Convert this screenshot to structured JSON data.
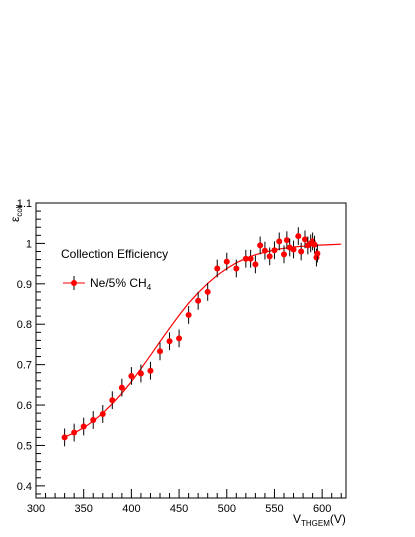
{
  "chart_data": {
    "type": "scatter",
    "title": "",
    "xlabel": {
      "main": "V",
      "sub": "THGEM",
      "unit": "(V)"
    },
    "ylabel": {
      "main": "ε",
      "sub": "coll"
    },
    "xlim": [
      300,
      625
    ],
    "ylim": [
      0.37,
      1.1
    ],
    "x_ticks": [
      300,
      350,
      400,
      450,
      500,
      550,
      600
    ],
    "y_ticks": [
      0.4,
      0.5,
      0.6,
      0.7,
      0.8,
      0.9,
      1,
      1.1
    ],
    "y_tick_labels": [
      "0.4",
      "0.5",
      "0.6",
      "0.7",
      "0.8",
      "0.9",
      "1",
      "1.1"
    ],
    "grid": false,
    "legend": {
      "header": "Collection Efficiency",
      "entries": [
        {
          "main": "Ne/5% CH",
          "sub": "4"
        }
      ],
      "placement": "top-left"
    },
    "colors": {
      "points": "#ff0000",
      "fit": "#ff0000",
      "errorbars": "#000000",
      "axes": "#000000"
    },
    "series": [
      {
        "type": "scatter-errorbar",
        "x": [
          330,
          340,
          350,
          360,
          370,
          380,
          390,
          400,
          410,
          420,
          430,
          440,
          450,
          460,
          470,
          480,
          490,
          500,
          510,
          520,
          525,
          530,
          535,
          540,
          545,
          550,
          555,
          560,
          563,
          566,
          570,
          575,
          578,
          582,
          585,
          588,
          590,
          592,
          594,
          595
        ],
        "y": [
          0.52,
          0.532,
          0.547,
          0.563,
          0.578,
          0.612,
          0.643,
          0.672,
          0.678,
          0.685,
          0.733,
          0.758,
          0.765,
          0.823,
          0.858,
          0.88,
          0.938,
          0.955,
          0.938,
          0.962,
          0.962,
          0.948,
          0.995,
          0.982,
          0.968,
          0.983,
          1.005,
          0.973,
          1.008,
          0.99,
          0.985,
          1.018,
          0.98,
          1.01,
          0.995,
          1.0,
          1.005,
          0.997,
          0.965,
          0.975
        ],
        "err": [
          0.022,
          0.022,
          0.022,
          0.022,
          0.022,
          0.022,
          0.022,
          0.022,
          0.022,
          0.022,
          0.022,
          0.022,
          0.022,
          0.022,
          0.022,
          0.022,
          0.022,
          0.022,
          0.022,
          0.022,
          0.022,
          0.022,
          0.022,
          0.022,
          0.022,
          0.022,
          0.022,
          0.022,
          0.022,
          0.022,
          0.022,
          0.022,
          0.022,
          0.022,
          0.022,
          0.022,
          0.022,
          0.022,
          0.022,
          0.022
        ]
      },
      {
        "type": "fit-line",
        "x": [
          330,
          340,
          350,
          360,
          370,
          380,
          390,
          400,
          410,
          420,
          430,
          440,
          450,
          460,
          470,
          480,
          490,
          500,
          510,
          520,
          530,
          540,
          550,
          560,
          570,
          580,
          590,
          600,
          610,
          620
        ],
        "y": [
          0.521,
          0.531,
          0.544,
          0.56,
          0.58,
          0.603,
          0.629,
          0.658,
          0.69,
          0.723,
          0.757,
          0.79,
          0.822,
          0.852,
          0.878,
          0.901,
          0.921,
          0.938,
          0.952,
          0.963,
          0.972,
          0.978,
          0.984,
          0.988,
          0.991,
          0.993,
          0.995,
          0.996,
          0.997,
          0.998
        ]
      }
    ]
  }
}
